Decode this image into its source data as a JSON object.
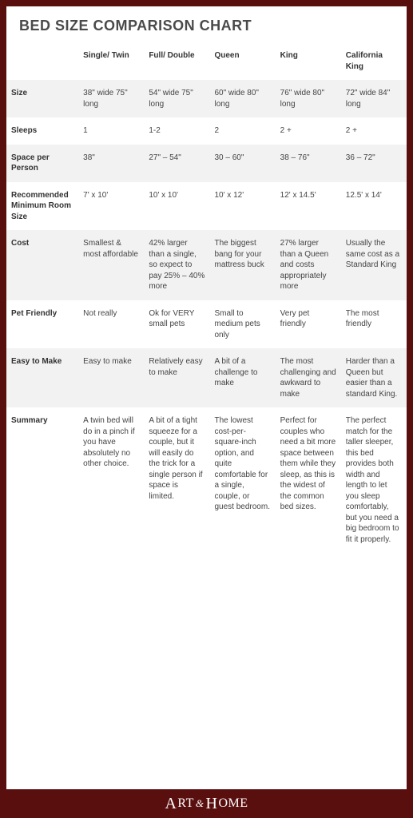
{
  "title": "BED SIZE COMPARISON CHART",
  "logo": {
    "art": "RT",
    "home": "OME",
    "amp": "&"
  },
  "colors": {
    "page_bg": "#5a0f0f",
    "card_bg": "#ffffff",
    "band_light": "#f2f2f2",
    "band_white": "#ffffff",
    "text": "#444444",
    "heading": "#333333"
  },
  "columns": [
    "Single/ Twin",
    "Full/ Double",
    "Queen",
    "King",
    "California King"
  ],
  "rows": [
    {
      "label": "Size",
      "band": "light",
      "cells": [
        "38\" wide 75\" long",
        "54\" wide 75\" long",
        "60\" wide 80\" long",
        "76\" wide 80\" long",
        "72\" wide 84\" long"
      ]
    },
    {
      "label": "Sleeps",
      "band": "white",
      "cells": [
        "1",
        "1-2",
        "2",
        "2 +",
        "2 +"
      ]
    },
    {
      "label": "Space per Person",
      "band": "light",
      "cells": [
        "38\"",
        "27\" – 54\"",
        "30 – 60\"",
        "38 – 76\"",
        "36 – 72\""
      ]
    },
    {
      "label": "Recommended Minimum Room Size",
      "band": "white",
      "cells": [
        "7' x 10'",
        "10' x 10'",
        "10' x 12'",
        "12' x 14.5'",
        "12.5' x 14'"
      ]
    },
    {
      "label": "Cost",
      "band": "light",
      "cells": [
        "Smallest & most affordable",
        "42% larger than a single,  so expect to pay 25% – 40% more",
        "The biggest bang for your mattress buck",
        "27% larger than a Queen and costs appropriately more",
        "Usually the same cost as a Standard King"
      ]
    },
    {
      "label": "Pet Friendly",
      "band": "white",
      "cells": [
        "Not really",
        "Ok for VERY small pets",
        "Small to medium pets only",
        "Very pet friendly",
        "The most friendly"
      ]
    },
    {
      "label": "Easy to Make",
      "band": "light",
      "cells": [
        "Easy to make",
        "Relatively easy to make",
        "A bit of a challenge to make",
        "The most challenging and awkward to make",
        "Harder than a Queen but easier than a standard King."
      ]
    },
    {
      "label": "Summary",
      "band": "white",
      "cells": [
        "A twin bed will do in a pinch if you have absolutely no other choice.",
        "A bit of a tight squeeze for a couple, but it will easily do the trick for a single person if space is limited.",
        "The lowest cost-per-square-inch option, and quite comfortable for a single, couple, or guest bedroom.",
        "Perfect for couples who need a bit more space between them while they sleep, as this is the widest of the common bed sizes.",
        "The perfect match for the taller sleeper, this bed provides both width and length to let you sleep comfortably, but you need a big bedroom to fit it properly."
      ]
    }
  ]
}
